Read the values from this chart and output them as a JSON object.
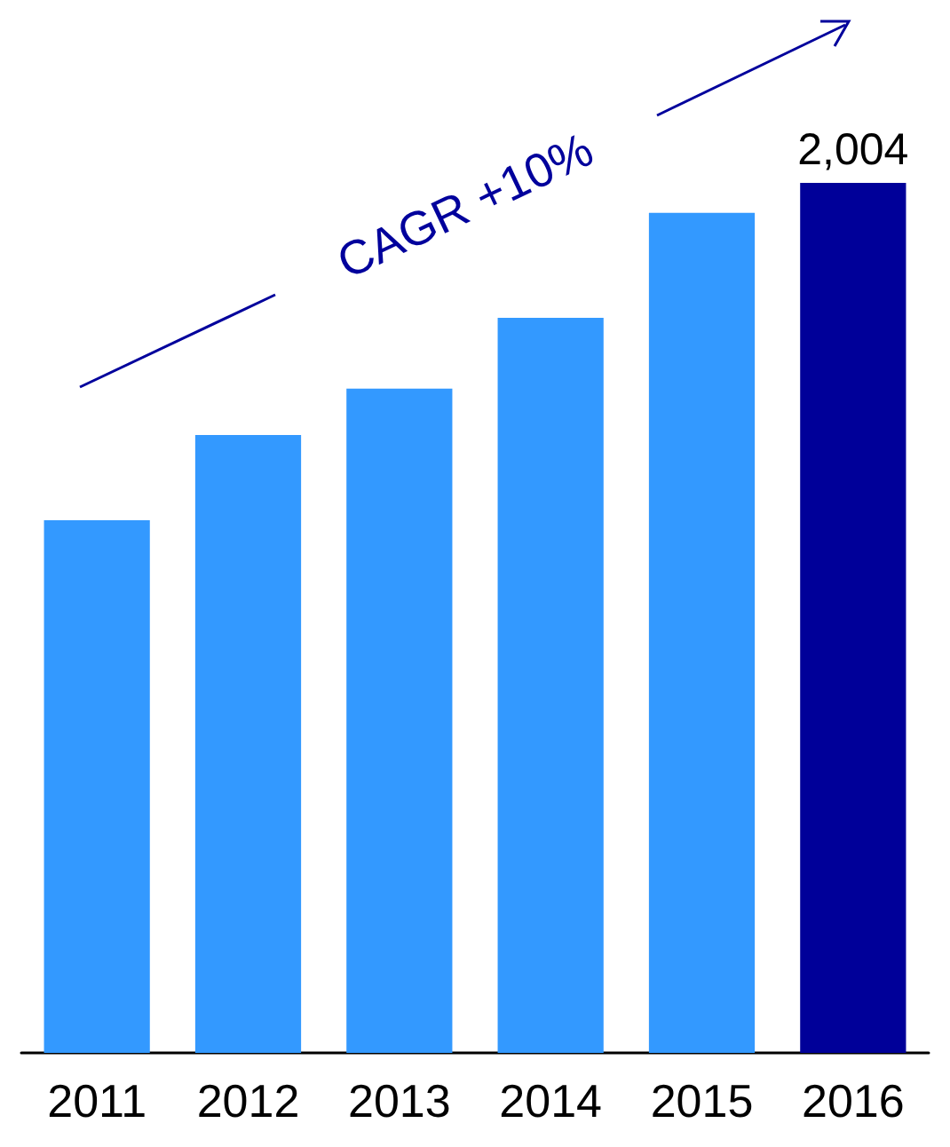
{
  "chart_data": {
    "type": "bar",
    "categories": [
      "2011",
      "2012",
      "2013",
      "2014",
      "2015",
      "2016"
    ],
    "values": [
      1227,
      1423,
      1530,
      1693,
      1935,
      2004
    ],
    "value_labels": [
      null,
      null,
      null,
      null,
      null,
      "2,004"
    ],
    "colors": [
      "#3399ff",
      "#3399ff",
      "#3399ff",
      "#3399ff",
      "#3399ff",
      "#000099"
    ],
    "annotations": [
      "CAGR +10%"
    ]
  }
}
